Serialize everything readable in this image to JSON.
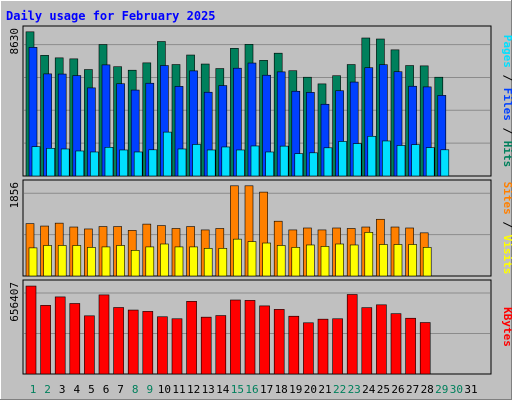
{
  "title": "Daily usage for February 2025",
  "colors": {
    "background": "#c0c0c0",
    "plot_bg": "#c0c0c0",
    "grid": "#8b8b8b",
    "title": "#0000ff",
    "hits": "#00805c",
    "files": "#0040ff",
    "pages": "#00e0ff",
    "visits": "#ff8000",
    "sites": "#ffff00",
    "kbytes": "#ff0000",
    "weekday_label": "#000000",
    "weekend_label": "#00805c"
  },
  "chart_data": [
    {
      "type": "bar",
      "name": "hits-files-pages",
      "y_max_label": "8630",
      "ylim": [
        0,
        8630
      ],
      "grid": true,
      "categories": [
        "1",
        "2",
        "3",
        "4",
        "5",
        "6",
        "7",
        "8",
        "9",
        "10",
        "11",
        "12",
        "13",
        "14",
        "15",
        "16",
        "17",
        "18",
        "19",
        "20",
        "21",
        "22",
        "23",
        "24",
        "25",
        "26",
        "27",
        "28",
        "29",
        "30",
        "31"
      ],
      "series": [
        {
          "name": "Hits",
          "color_key": "hits",
          "values": [
            8640,
            7230,
            7080,
            7020,
            6380,
            7880,
            6550,
            6340,
            6780,
            8060,
            6680,
            7250,
            6710,
            6440,
            7650,
            7890,
            6930,
            7360,
            6310,
            5920,
            5520,
            6010,
            6680,
            8270,
            8210,
            7560,
            6620,
            6600,
            5920,
            0,
            0
          ]
        },
        {
          "name": "Files",
          "color_key": "files",
          "values": [
            7710,
            6120,
            6110,
            6020,
            5280,
            6660,
            5530,
            5150,
            5560,
            6620,
            5370,
            6300,
            5020,
            5420,
            6460,
            6770,
            6040,
            6240,
            5080,
            5010,
            4300,
            5110,
            5630,
            6490,
            6670,
            6250,
            5380,
            5340,
            4830,
            0,
            0
          ]
        },
        {
          "name": "Pages",
          "color_key": "pages",
          "values": [
            1760,
            1660,
            1620,
            1500,
            1440,
            1720,
            1560,
            1440,
            1570,
            2630,
            1620,
            1890,
            1560,
            1740,
            1560,
            1800,
            1440,
            1790,
            1340,
            1390,
            1690,
            2070,
            1940,
            2380,
            2100,
            1830,
            1880,
            1700,
            1570,
            0,
            0
          ]
        }
      ]
    },
    {
      "type": "bar",
      "name": "visits-sites",
      "y_max_label": "1856",
      "ylim": [
        0,
        1856
      ],
      "grid": true,
      "categories": [
        "1",
        "2",
        "3",
        "4",
        "5",
        "6",
        "7",
        "8",
        "9",
        "10",
        "11",
        "12",
        "13",
        "14",
        "15",
        "16",
        "17",
        "18",
        "19",
        "20",
        "21",
        "22",
        "23",
        "24",
        "25",
        "26",
        "27",
        "28",
        "29",
        "30",
        "31"
      ],
      "series": [
        {
          "name": "Visits",
          "color_key": "visits",
          "values": [
            1080,
            1030,
            1090,
            1010,
            970,
            1020,
            1020,
            940,
            1070,
            1040,
            980,
            1020,
            950,
            980,
            1860,
            1860,
            1730,
            1130,
            950,
            990,
            950,
            990,
            980,
            1010,
            1170,
            1010,
            990,
            890,
            0,
            0,
            0
          ]
        },
        {
          "name": "Sites",
          "color_key": "sites",
          "values": [
            580,
            630,
            630,
            630,
            590,
            600,
            630,
            530,
            600,
            660,
            600,
            600,
            570,
            570,
            760,
            710,
            680,
            630,
            590,
            640,
            610,
            660,
            640,
            900,
            650,
            650,
            650,
            590,
            0,
            0,
            0
          ]
        }
      ]
    },
    {
      "type": "bar",
      "name": "kbytes",
      "y_max_label": "656407",
      "ylim": [
        0,
        656407
      ],
      "grid": true,
      "categories": [
        "1",
        "2",
        "3",
        "4",
        "5",
        "6",
        "7",
        "8",
        "9",
        "10",
        "11",
        "12",
        "13",
        "14",
        "15",
        "16",
        "17",
        "18",
        "19",
        "20",
        "21",
        "22",
        "23",
        "24",
        "25",
        "26",
        "27",
        "28",
        "29",
        "30",
        "31"
      ],
      "series": [
        {
          "name": "KBytes",
          "color_key": "kbytes",
          "values": [
            656000,
            512000,
            575000,
            526000,
            434000,
            590000,
            496000,
            477000,
            467000,
            427000,
            412000,
            542000,
            424000,
            436000,
            552000,
            549000,
            508000,
            482000,
            431000,
            382000,
            409000,
            412000,
            593000,
            495000,
            516000,
            450000,
            416000,
            384000,
            0,
            0,
            0
          ]
        }
      ]
    }
  ],
  "day_labels": [
    "1",
    "2",
    "3",
    "4",
    "5",
    "6",
    "7",
    "8",
    "9",
    "10",
    "11",
    "12",
    "13",
    "14",
    "15",
    "16",
    "17",
    "18",
    "19",
    "20",
    "21",
    "22",
    "23",
    "24",
    "25",
    "26",
    "27",
    "28",
    "29",
    "30",
    "31"
  ],
  "weekend_days": [
    "1",
    "2",
    "8",
    "9",
    "15",
    "16",
    "22",
    "23",
    "29",
    "30"
  ],
  "side_legends": [
    {
      "parts": [
        {
          "text": "Pages",
          "color_key": "pages"
        },
        {
          "text": " / ",
          "color_key": "weekday_label"
        },
        {
          "text": "Files",
          "color_key": "files"
        },
        {
          "text": " / ",
          "color_key": "weekday_label"
        },
        {
          "text": "Hits",
          "color_key": "hits"
        }
      ]
    },
    {
      "parts": [
        {
          "text": "Sites",
          "color_key": "visits"
        },
        {
          "text": " / ",
          "color_key": "weekday_label"
        },
        {
          "text": "Visits",
          "color_key": "sites"
        }
      ]
    },
    {
      "parts": [
        {
          "text": "KBytes",
          "color_key": "kbytes"
        }
      ]
    }
  ]
}
